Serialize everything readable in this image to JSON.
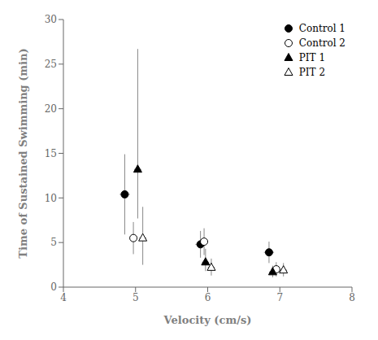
{
  "chart_data": {
    "type": "scatter",
    "xlabel": "Velocity (cm/s)",
    "ylabel": "Time of Sustained Swimming (min)",
    "xlim": [
      4,
      8
    ],
    "ylim": [
      0,
      30
    ],
    "xticks": [
      4,
      5,
      6,
      7,
      8
    ],
    "yticks": [
      0,
      5,
      10,
      15,
      20,
      25,
      30
    ],
    "grid": false,
    "legend": "upper right",
    "series": [
      {
        "name": "Control 1",
        "marker": "circle",
        "color": "#000000",
        "x": [
          4.85,
          5.9,
          6.85
        ],
        "y": [
          10.4,
          4.8,
          3.9
        ],
        "yerr_lo": [
          4.5,
          1.5,
          1.2
        ],
        "yerr_hi": [
          4.5,
          1.5,
          1.2
        ],
        "xerr": [
          0.07,
          0.07,
          0.07
        ]
      },
      {
        "name": "Control 2",
        "marker": "circle",
        "color": "#ffffff",
        "x": [
          4.97,
          5.95,
          6.95
        ],
        "y": [
          5.5,
          5.1,
          2.0
        ],
        "yerr_lo": [
          1.8,
          1.5,
          0.8
        ],
        "yerr_hi": [
          1.8,
          1.5,
          0.8
        ],
        "xerr": [
          0.05,
          0.05,
          0.05
        ]
      },
      {
        "name": "PIT 1",
        "marker": "triangle",
        "color": "#000000",
        "x": [
          5.03,
          5.97,
          6.9
        ],
        "y": [
          13.2,
          2.8,
          1.7
        ],
        "yerr_lo": [
          5.5,
          1.0,
          0.6
        ],
        "yerr_hi": [
          13.5,
          1.5,
          0.7
        ],
        "xerr": [
          0.05,
          0.05,
          0.05
        ]
      },
      {
        "name": "PIT 2",
        "marker": "triangle",
        "color": "#ffffff",
        "x": [
          5.1,
          6.05,
          7.05
        ],
        "y": [
          5.5,
          2.2,
          1.9
        ],
        "yerr_lo": [
          3.0,
          0.9,
          0.7
        ],
        "yerr_hi": [
          3.5,
          1.0,
          0.8
        ],
        "xerr": [
          0.05,
          0.05,
          0.05
        ]
      }
    ]
  }
}
